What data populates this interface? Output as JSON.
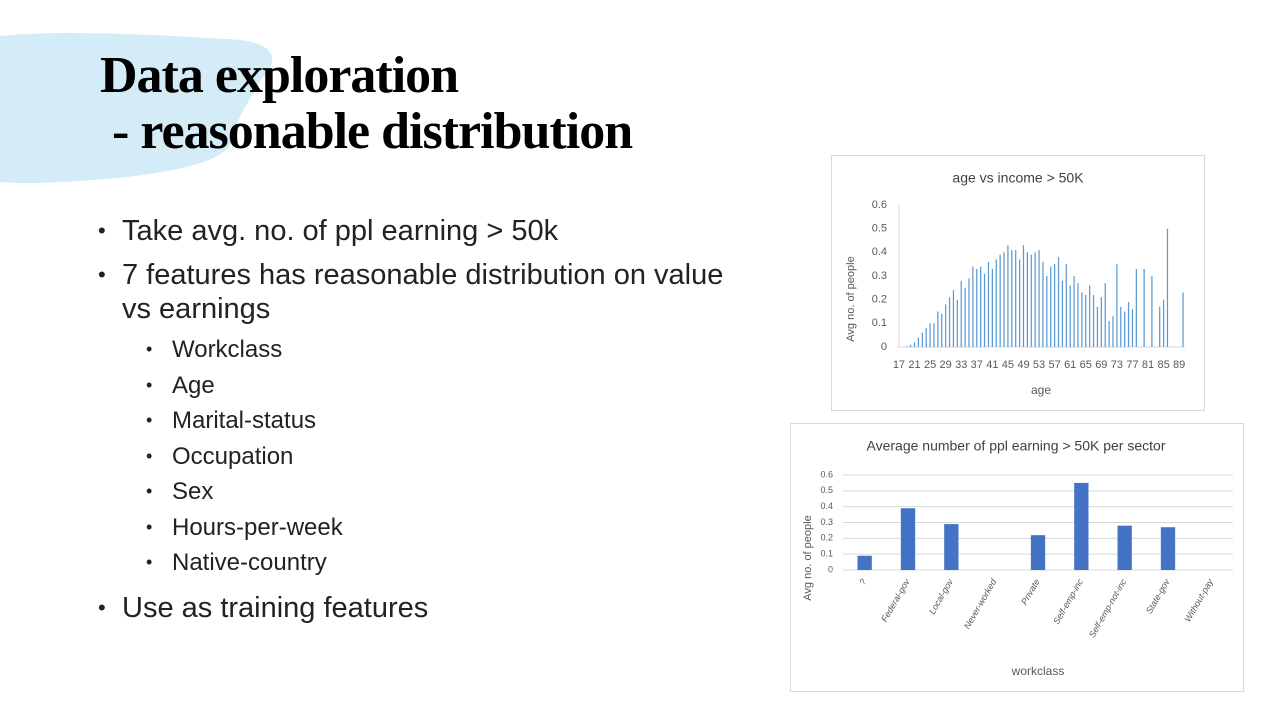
{
  "title": [
    "Data exploration",
    " - reasonable distribution"
  ],
  "bullets": [
    {
      "text": "Take avg. no. of ppl earning > 50k"
    },
    {
      "text": "7 features has reasonable distribution on value vs earnings",
      "items": [
        "Workclass",
        "Age",
        "Marital-status",
        "Occupation",
        "Sex",
        "Hours-per-week",
        "Native-country"
      ]
    },
    {
      "text": "Use as training features"
    }
  ],
  "chart_data": [
    {
      "type": "bar",
      "title": "age vs income > 50K",
      "x_label": "age",
      "y_label": "Avg no. of people",
      "categories": [
        "17",
        null,
        null,
        null,
        "21",
        null,
        null,
        null,
        "25",
        null,
        null,
        null,
        "29",
        null,
        null,
        null,
        "33",
        null,
        null,
        null,
        "37",
        null,
        null,
        null,
        "41",
        null,
        null,
        null,
        "45",
        null,
        null,
        null,
        "49",
        null,
        null,
        null,
        "53",
        null,
        null,
        null,
        "57",
        null,
        null,
        null,
        "61",
        null,
        null,
        null,
        "65",
        null,
        null,
        null,
        "69",
        null,
        null,
        null,
        "73",
        null,
        null,
        null,
        "77",
        null,
        null,
        null,
        "81",
        null,
        null,
        null,
        "85",
        null,
        null,
        null,
        "89",
        null
      ],
      "values": [
        0,
        0,
        0.003,
        0.01,
        0.02,
        0.04,
        0.06,
        0.08,
        0.1,
        0.1,
        0.15,
        0.14,
        0.18,
        0.21,
        0.24,
        0.2,
        0.28,
        0.25,
        0.29,
        0.34,
        0.33,
        0.34,
        0.31,
        0.36,
        0.33,
        0.37,
        0.39,
        0.4,
        0.43,
        0.41,
        0.41,
        0.37,
        0.43,
        0.4,
        0.39,
        0.4,
        0.41,
        0.36,
        0.3,
        0.34,
        0.35,
        0.38,
        0.28,
        0.35,
        0.26,
        0.3,
        0.27,
        0.23,
        0.22,
        0.26,
        0.22,
        0.17,
        0.21,
        0.27,
        0.11,
        0.13,
        0.35,
        0.17,
        0.15,
        0.19,
        0.16,
        0.33,
        0,
        0.33,
        0,
        0.3,
        0,
        0.17,
        0.2,
        0.5,
        0,
        0,
        0,
        0.23
      ],
      "color": "#5b9bd5",
      "ylim": [
        0,
        0.6
      ],
      "yticks": [
        0,
        0.1,
        0.2,
        0.3,
        0.4,
        0.5,
        0.6
      ],
      "grid": false
    },
    {
      "type": "bar",
      "title": "Average number of ppl earning > 50K per sector",
      "x_label": "workclass",
      "y_label": "Avg no. of people",
      "categories": [
        "?",
        "Federal-gov",
        "Local-gov",
        "Never-worked",
        "Private",
        "Self-emp-inc",
        "Self-emp-not-inc",
        "State-gov",
        "Without-pay"
      ],
      "values": [
        0.09,
        0.39,
        0.29,
        0,
        0.22,
        0.55,
        0.28,
        0.27,
        0
      ],
      "color": "#4472c4",
      "ylim": [
        0,
        0.6
      ],
      "yticks": [
        0,
        0.1,
        0.2,
        0.3,
        0.4,
        0.5,
        0.6
      ],
      "grid": true
    }
  ]
}
